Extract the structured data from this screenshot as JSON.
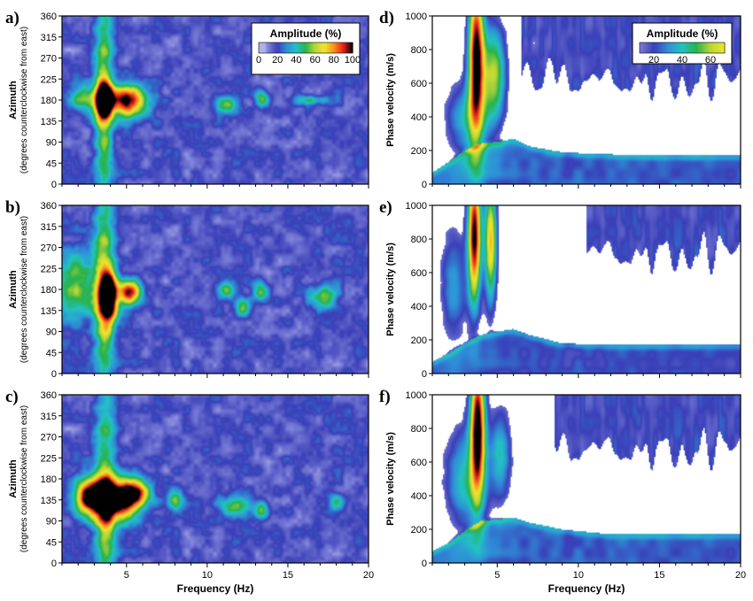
{
  "colormap": [
    "#ffffff",
    "#7c80d8",
    "#3a3fb8",
    "#2f8fd8",
    "#22c2c2",
    "#29b24a",
    "#b8d636",
    "#f1e52c",
    "#f7921e",
    "#e8201c",
    "#000000"
  ],
  "panels_left": [
    {
      "id": "a",
      "label": "a)",
      "ylabel": "Azimuth",
      "ysublabel": "(degrees counterclockwise from east)",
      "xlabel": "",
      "yticks": [
        "0",
        "45",
        "90",
        "135",
        "180",
        "225",
        "270",
        "315",
        "360"
      ],
      "show_xticklabels": false,
      "legend": {
        "title": "Amplitude (%)",
        "ticks": [
          "0",
          "20",
          "40",
          "60",
          "80",
          "100"
        ]
      }
    },
    {
      "id": "b",
      "label": "b)",
      "ylabel": "Azimuth",
      "ysublabel": "(degrees counterclockwise from east)",
      "xlabel": "",
      "yticks": [
        "0",
        "45",
        "90",
        "135",
        "180",
        "225",
        "270",
        "315",
        "360"
      ],
      "show_xticklabels": false,
      "legend": null
    },
    {
      "id": "c",
      "label": "c)",
      "ylabel": "Azimuth",
      "ysublabel": "(degrees counterclockwise from east)",
      "xlabel": "Frequency (Hz)",
      "yticks": [
        "0",
        "45",
        "90",
        "135",
        "180",
        "225",
        "270",
        "315",
        "360"
      ],
      "show_xticklabels": true,
      "legend": null
    }
  ],
  "panels_right": [
    {
      "id": "d",
      "label": "d)",
      "ylabel": "Phase velocity (m/s)",
      "xlabel": "",
      "yticks": [
        "0",
        "200",
        "400",
        "600",
        "800",
        "1000"
      ],
      "show_xticklabels": false,
      "legend": {
        "title": "Amplitude (%)",
        "ticks": [
          "20",
          "40",
          "60"
        ]
      }
    },
    {
      "id": "e",
      "label": "e)",
      "ylabel": "Phase velocity (m/s)",
      "xlabel": "",
      "yticks": [
        "0",
        "200",
        "400",
        "600",
        "800",
        "1000"
      ],
      "show_xticklabels": false,
      "legend": null
    },
    {
      "id": "f",
      "label": "f)",
      "ylabel": "Phase velocity (m/s)",
      "xlabel": "Frequency (Hz)",
      "yticks": [
        "0",
        "200",
        "400",
        "600",
        "800",
        "1000"
      ],
      "show_xticklabels": true,
      "legend": null
    }
  ],
  "chart_data": [
    {
      "panel": "a",
      "type": "heatmap",
      "xlabel": "",
      "ylabel": "Azimuth",
      "xlim": [
        1,
        20
      ],
      "ylim": [
        0,
        360
      ],
      "xticks": [
        5,
        10,
        15,
        20
      ],
      "colorbar": {
        "title": "Amplitude (%)",
        "range": [
          0,
          100
        ]
      },
      "background": 16,
      "features": [
        {
          "kind": "ridge",
          "x": 3.6,
          "w": 0.4,
          "a": 44,
          "yc": 180,
          "ys": 150
        },
        {
          "kind": "peak",
          "x": 5.0,
          "y": 180,
          "sx": 0.9,
          "sy": 24,
          "a": 85
        },
        {
          "kind": "peak",
          "x": 3.6,
          "y": 180,
          "sx": 0.35,
          "sy": 28,
          "a": 80
        },
        {
          "kind": "peak",
          "x": 2.3,
          "y": 185,
          "sx": 0.6,
          "sy": 18,
          "a": 38
        },
        {
          "kind": "peak",
          "x": 11.2,
          "y": 170,
          "sx": 0.45,
          "sy": 14,
          "a": 40
        },
        {
          "kind": "peak",
          "x": 13.4,
          "y": 182,
          "sx": 0.3,
          "sy": 12,
          "a": 40
        },
        {
          "kind": "peak",
          "x": 16.5,
          "y": 180,
          "sx": 0.8,
          "sy": 7,
          "a": 28
        }
      ]
    },
    {
      "panel": "b",
      "type": "heatmap",
      "xlabel": "",
      "ylabel": "Azimuth",
      "xlim": [
        1,
        20
      ],
      "ylim": [
        0,
        360
      ],
      "xticks": [
        5,
        10,
        15,
        20
      ],
      "background": 16,
      "features": [
        {
          "kind": "ridge",
          "x": 3.6,
          "w": 0.45,
          "a": 44,
          "yc": 180,
          "ys": 150
        },
        {
          "kind": "peak",
          "x": 3.9,
          "y": 165,
          "sx": 0.4,
          "sy": 40,
          "a": 95
        },
        {
          "kind": "peak",
          "x": 5.2,
          "y": 175,
          "sx": 0.5,
          "sy": 18,
          "a": 80
        },
        {
          "kind": "peak",
          "x": 1.8,
          "y": 185,
          "sx": 0.9,
          "sy": 55,
          "a": 38
        },
        {
          "kind": "peak",
          "x": 11.2,
          "y": 180,
          "sx": 0.35,
          "sy": 14,
          "a": 40
        },
        {
          "kind": "peak",
          "x": 12.2,
          "y": 140,
          "sx": 0.3,
          "sy": 14,
          "a": 38
        },
        {
          "kind": "peak",
          "x": 13.3,
          "y": 175,
          "sx": 0.35,
          "sy": 14,
          "a": 40
        },
        {
          "kind": "peak",
          "x": 17.2,
          "y": 165,
          "sx": 0.6,
          "sy": 18,
          "a": 40
        }
      ]
    },
    {
      "panel": "c",
      "type": "heatmap",
      "xlabel": "Frequency (Hz)",
      "ylabel": "Azimuth",
      "xlim": [
        1,
        20
      ],
      "ylim": [
        0,
        360
      ],
      "xticks": [
        5,
        10,
        15,
        20
      ],
      "background": 16,
      "features": [
        {
          "kind": "ridge",
          "x": 3.7,
          "w": 0.45,
          "a": 44,
          "yc": 140,
          "ys": 150
        },
        {
          "kind": "peak",
          "x": 4.2,
          "y": 135,
          "sx": 1.0,
          "sy": 32,
          "a": 95
        },
        {
          "kind": "peak",
          "x": 2.6,
          "y": 140,
          "sx": 0.6,
          "sy": 28,
          "a": 70
        },
        {
          "kind": "peak",
          "x": 5.6,
          "y": 150,
          "sx": 0.6,
          "sy": 22,
          "a": 60
        },
        {
          "kind": "peak",
          "x": 8.0,
          "y": 135,
          "sx": 0.35,
          "sy": 18,
          "a": 36
        },
        {
          "kind": "peak",
          "x": 11.8,
          "y": 120,
          "sx": 0.7,
          "sy": 16,
          "a": 40
        },
        {
          "kind": "peak",
          "x": 13.4,
          "y": 112,
          "sx": 0.3,
          "sy": 14,
          "a": 38
        },
        {
          "kind": "peak",
          "x": 18.0,
          "y": 130,
          "sx": 0.3,
          "sy": 12,
          "a": 30
        }
      ]
    },
    {
      "panel": "d",
      "type": "heatmap",
      "xlabel": "",
      "ylabel": "Phase velocity (m/s)",
      "xlim": [
        1,
        20
      ],
      "ylim": [
        0,
        1000
      ],
      "xticks": [
        5,
        10,
        15,
        20
      ],
      "colorbar": {
        "title": "Amplitude (%)",
        "range": [
          10,
          70
        ]
      },
      "background": 0,
      "features": [
        {
          "kind": "curve",
          "pts": [
            [
              1,
              60
            ],
            [
              2,
              120
            ],
            [
              3,
              190
            ],
            [
              4,
              230
            ],
            [
              5,
              240
            ],
            [
              6,
              260
            ],
            [
              7,
              215
            ],
            [
              9,
              180
            ],
            [
              11,
              170
            ],
            [
              15,
              160
            ],
            [
              20,
              160
            ]
          ],
          "a": 25,
          "s": 14
        },
        {
          "kind": "peak",
          "x": 3.7,
          "y": 760,
          "sx": 0.35,
          "sy": 350,
          "a": 100
        },
        {
          "kind": "peak",
          "x": 4.8,
          "y": 650,
          "sx": 0.55,
          "sy": 220,
          "a": 60
        },
        {
          "kind": "peak",
          "x": 3.0,
          "y": 380,
          "sx": 0.9,
          "sy": 170,
          "a": 35
        },
        {
          "kind": "curtain",
          "x0": 6.5,
          "x1": 20,
          "ybase": 520,
          "a": 14,
          "s": 0.9
        }
      ]
    },
    {
      "panel": "e",
      "type": "heatmap",
      "xlabel": "",
      "ylabel": "Phase velocity (m/s)",
      "xlim": [
        1,
        20
      ],
      "ylim": [
        0,
        1000
      ],
      "xticks": [
        5,
        10,
        15,
        20
      ],
      "background": 0,
      "features": [
        {
          "kind": "curve",
          "pts": [
            [
              1,
              60
            ],
            [
              2,
              110
            ],
            [
              3,
              170
            ],
            [
              4,
              220
            ],
            [
              5,
              240
            ],
            [
              6,
              255
            ],
            [
              7,
              220
            ],
            [
              9,
              170
            ],
            [
              12,
              160
            ],
            [
              20,
              160
            ]
          ],
          "a": 22,
          "s": 14
        },
        {
          "kind": "peak",
          "x": 3.6,
          "y": 820,
          "sx": 0.3,
          "sy": 300,
          "a": 100
        },
        {
          "kind": "peak",
          "x": 4.6,
          "y": 780,
          "sx": 0.28,
          "sy": 260,
          "a": 75
        },
        {
          "kind": "peak",
          "x": 2.3,
          "y": 520,
          "sx": 0.6,
          "sy": 260,
          "a": 32
        },
        {
          "kind": "curtain",
          "x0": 10.5,
          "x1": 20,
          "ybase": 620,
          "a": 14,
          "s": 0.9
        }
      ]
    },
    {
      "panel": "f",
      "type": "heatmap",
      "xlabel": "Frequency (Hz)",
      "ylabel": "Phase velocity (m/s)",
      "xlim": [
        1,
        20
      ],
      "ylim": [
        0,
        1000
      ],
      "xticks": [
        5,
        10,
        15,
        20
      ],
      "background": 0,
      "features": [
        {
          "kind": "curve",
          "pts": [
            [
              1,
              60
            ],
            [
              2,
              110
            ],
            [
              3,
              180
            ],
            [
              4,
              240
            ],
            [
              5,
              250
            ],
            [
              6,
              260
            ],
            [
              7,
              230
            ],
            [
              9,
              190
            ],
            [
              12,
              160
            ],
            [
              20,
              160
            ]
          ],
          "a": 25,
          "s": 14
        },
        {
          "kind": "peak",
          "x": 3.8,
          "y": 820,
          "sx": 0.33,
          "sy": 320,
          "a": 100
        },
        {
          "kind": "peak",
          "x": 3.0,
          "y": 500,
          "sx": 0.9,
          "sy": 230,
          "a": 40
        },
        {
          "kind": "peak",
          "x": 5.2,
          "y": 640,
          "sx": 0.5,
          "sy": 200,
          "a": 40
        },
        {
          "kind": "curtain",
          "x0": 8.5,
          "x1": 20,
          "ybase": 580,
          "a": 14,
          "s": 0.9
        }
      ]
    }
  ]
}
